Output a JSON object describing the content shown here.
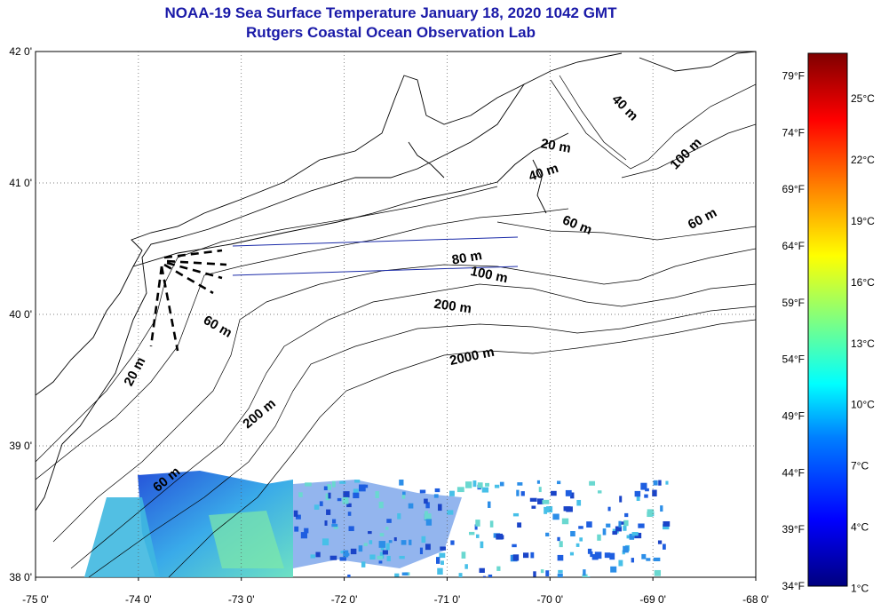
{
  "title_line1": "NOAA-19 Sea Surface Temperature January 18, 2020 1042 GMT",
  "title_line2": "Rutgers Coastal Ocean Observation Lab",
  "map": {
    "lon_range": [
      -75,
      -68
    ],
    "lat_range": [
      38,
      42
    ],
    "lon_ticks": [
      -75,
      -74,
      -73,
      -72,
      -71,
      -70,
      -69,
      -68
    ],
    "lon_labels": [
      "-75 0'",
      "-74 0'",
      "-73 0'",
      "-72 0'",
      "-71 0'",
      "-70 0'",
      "-69 0'",
      "-68 0'"
    ],
    "lat_ticks": [
      38,
      39,
      40,
      41,
      42
    ],
    "lat_labels": [
      "38 0'",
      "39 0'",
      "40 0'",
      "41 0'",
      "42 0'"
    ],
    "gridlines": "dotted",
    "isobath_labels": [
      {
        "text": "20 m",
        "lon": -69.95,
        "lat": 41.25,
        "angle": 10
      },
      {
        "text": "40 m",
        "lon": -70.05,
        "lat": 41.05,
        "angle": -18
      },
      {
        "text": "40 m",
        "lon": -69.3,
        "lat": 41.55,
        "angle": 45
      },
      {
        "text": "100 m",
        "lon": -68.65,
        "lat": 41.2,
        "angle": -45
      },
      {
        "text": "60 m",
        "lon": -69.75,
        "lat": 40.65,
        "angle": 22
      },
      {
        "text": "60 m",
        "lon": -68.5,
        "lat": 40.7,
        "angle": -28
      },
      {
        "text": "80 m",
        "lon": -70.8,
        "lat": 40.4,
        "angle": -10
      },
      {
        "text": "100 m",
        "lon": -70.6,
        "lat": 40.27,
        "angle": 12
      },
      {
        "text": "200 m",
        "lon": -70.95,
        "lat": 40.03,
        "angle": 8
      },
      {
        "text": "2000 m",
        "lon": -70.75,
        "lat": 39.65,
        "angle": -12
      },
      {
        "text": "60 m",
        "lon": -73.25,
        "lat": 39.88,
        "angle": 30
      },
      {
        "text": "20 m",
        "lon": -74.0,
        "lat": 39.55,
        "angle": -62
      },
      {
        "text": "200 m",
        "lon": -72.8,
        "lat": 39.22,
        "angle": -40
      },
      {
        "text": "60 m",
        "lon": -73.7,
        "lat": 38.72,
        "angle": -40
      }
    ]
  },
  "colorbar": {
    "fahrenheit_labels": [
      "79°F",
      "74°F",
      "69°F",
      "64°F",
      "59°F",
      "54°F",
      "49°F",
      "44°F",
      "39°F",
      "34°F"
    ],
    "celsius_labels": [
      "25°C",
      "22°C",
      "19°C",
      "16°C",
      "13°C",
      "10°C",
      "7°C",
      "4°C",
      "1°C"
    ],
    "fahrenheit_values": [
      79,
      74,
      69,
      64,
      59,
      54,
      49,
      44,
      39,
      34
    ],
    "celsius_values": [
      25,
      22,
      19,
      16,
      13,
      10,
      7,
      4,
      1
    ],
    "range_f": [
      34,
      81
    ],
    "colors": [
      "#00007f",
      "#0000ff",
      "#0080ff",
      "#00ffff",
      "#80ff80",
      "#ffff00",
      "#ff8000",
      "#ff0000",
      "#7f0000"
    ]
  }
}
